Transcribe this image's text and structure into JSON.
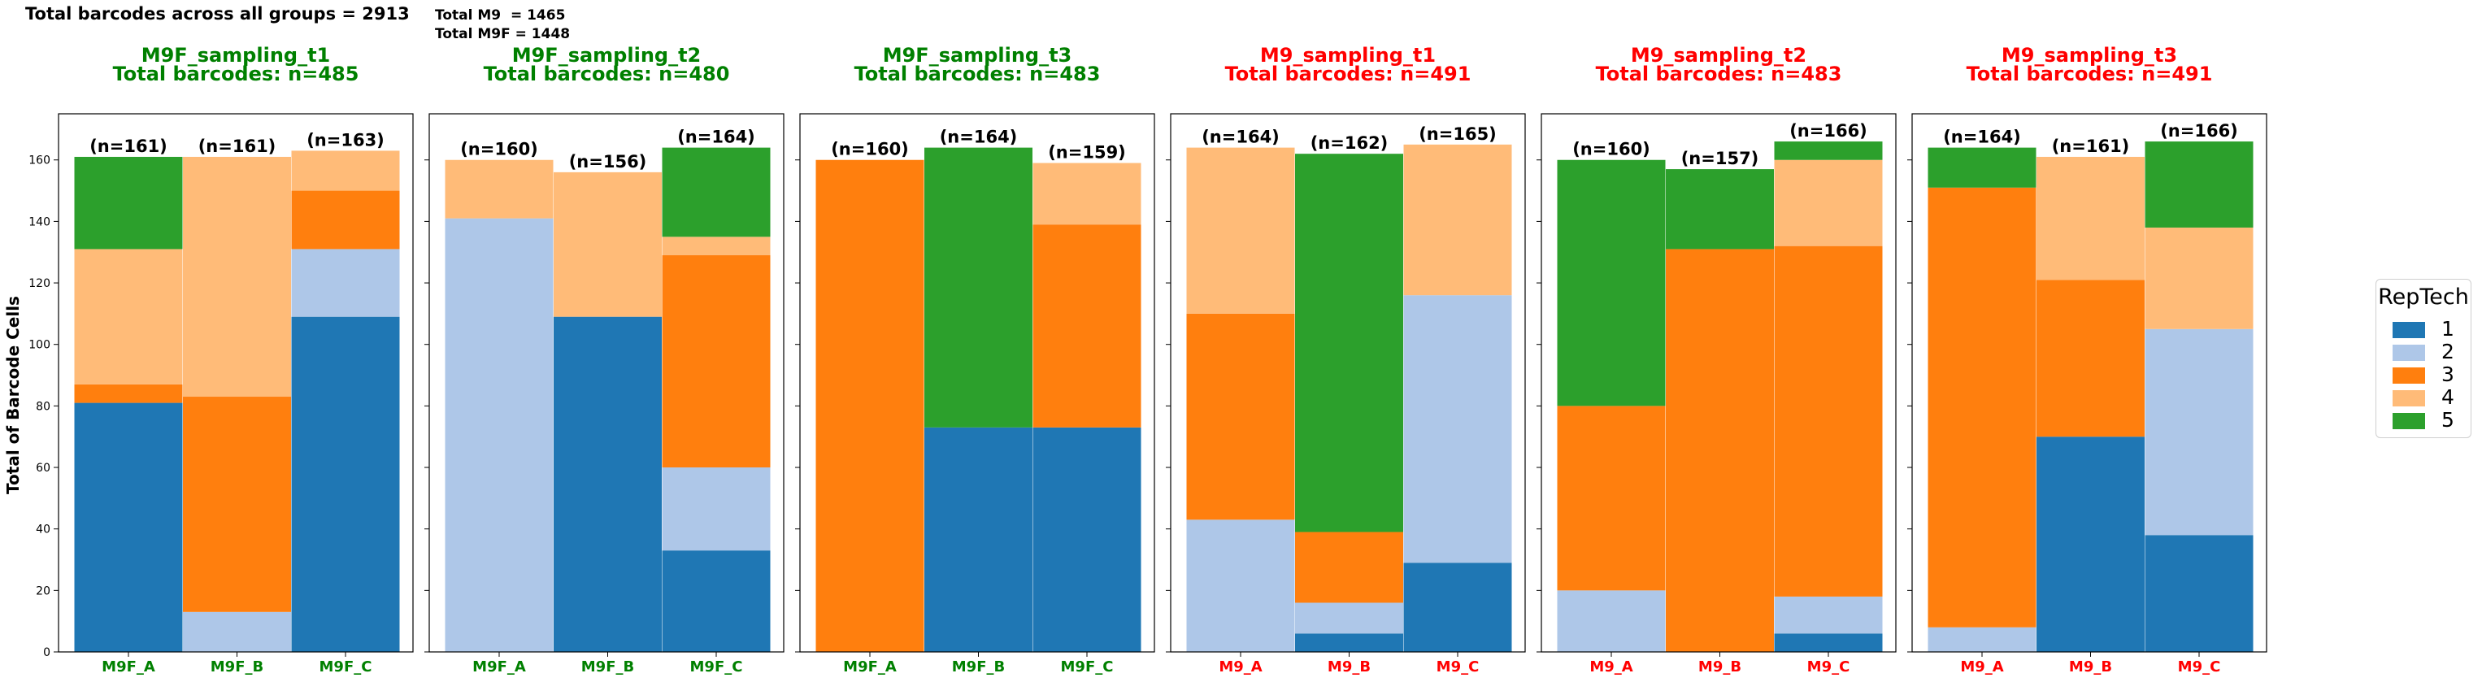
{
  "header": {
    "total_all": "Total barcodes across all groups = 2913",
    "total_m9": "Total M9  = 1465",
    "total_m9f": "Total M9F = 1448"
  },
  "colors": {
    "group_m9f": "#008000",
    "group_m9": "#ff0000",
    "rep1": "#1f77b4",
    "rep2": "#aec7e8",
    "rep3": "#ff7f0e",
    "rep4": "#ffbb78",
    "rep5": "#2ca02c"
  },
  "legend": {
    "title": "RepTech",
    "items": [
      {
        "label": "1",
        "color": "#1f77b4"
      },
      {
        "label": "2",
        "color": "#aec7e8"
      },
      {
        "label": "3",
        "color": "#ff7f0e"
      },
      {
        "label": "4",
        "color": "#ffbb78"
      },
      {
        "label": "5",
        "color": "#2ca02c"
      }
    ]
  },
  "chart_data": {
    "type": "bar",
    "stacked": true,
    "ylabel": "Total of Barcode Cells",
    "ylim": [
      0,
      175
    ],
    "yticks": [
      0,
      20,
      40,
      60,
      80,
      100,
      120,
      140,
      160
    ],
    "series_names": [
      "1",
      "2",
      "3",
      "4",
      "5"
    ],
    "panels": [
      {
        "title": "M9F_sampling_t1",
        "subtitle": "Total barcodes: n=485",
        "group": "M9F",
        "categories": [
          "M9F_A",
          "M9F_B",
          "M9F_C"
        ],
        "totals_labels": [
          "(n=161)",
          "(n=161)",
          "(n=163)"
        ],
        "series": [
          {
            "name": "1",
            "values": [
              81,
              0,
              109
            ]
          },
          {
            "name": "2",
            "values": [
              0,
              13,
              22
            ]
          },
          {
            "name": "3",
            "values": [
              6,
              70,
              19
            ]
          },
          {
            "name": "4",
            "values": [
              44,
              78,
              13
            ]
          },
          {
            "name": "5",
            "values": [
              30,
              0,
              0
            ]
          }
        ]
      },
      {
        "title": "M9F_sampling_t2",
        "subtitle": "Total barcodes: n=480",
        "group": "M9F",
        "categories": [
          "M9F_A",
          "M9F_B",
          "M9F_C"
        ],
        "totals_labels": [
          "(n=160)",
          "(n=156)",
          "(n=164)"
        ],
        "series": [
          {
            "name": "1",
            "values": [
              0,
              109,
              33
            ]
          },
          {
            "name": "2",
            "values": [
              141,
              0,
              27
            ]
          },
          {
            "name": "3",
            "values": [
              0,
              0,
              69
            ]
          },
          {
            "name": "4",
            "values": [
              19,
              47,
              6
            ]
          },
          {
            "name": "5",
            "values": [
              0,
              0,
              29
            ]
          }
        ]
      },
      {
        "title": "M9F_sampling_t3",
        "subtitle": "Total barcodes: n=483",
        "group": "M9F",
        "categories": [
          "M9F_A",
          "M9F_B",
          "M9F_C"
        ],
        "totals_labels": [
          "(n=160)",
          "(n=164)",
          "(n=159)"
        ],
        "series": [
          {
            "name": "1",
            "values": [
              0,
              73,
              73
            ]
          },
          {
            "name": "2",
            "values": [
              0,
              0,
              0
            ]
          },
          {
            "name": "3",
            "values": [
              160,
              0,
              66
            ]
          },
          {
            "name": "4",
            "values": [
              0,
              0,
              20
            ]
          },
          {
            "name": "5",
            "values": [
              0,
              91,
              0
            ]
          }
        ]
      },
      {
        "title": "M9_sampling_t1",
        "subtitle": "Total barcodes: n=491",
        "group": "M9",
        "categories": [
          "M9_A",
          "M9_B",
          "M9_C"
        ],
        "totals_labels": [
          "(n=164)",
          "(n=162)",
          "(n=165)"
        ],
        "series": [
          {
            "name": "1",
            "values": [
              0,
              6,
              29
            ]
          },
          {
            "name": "2",
            "values": [
              43,
              10,
              87
            ]
          },
          {
            "name": "3",
            "values": [
              67,
              23,
              0
            ]
          },
          {
            "name": "4",
            "values": [
              54,
              0,
              49
            ]
          },
          {
            "name": "5",
            "values": [
              0,
              123,
              0
            ]
          }
        ]
      },
      {
        "title": "M9_sampling_t2",
        "subtitle": "Total barcodes: n=483",
        "group": "M9",
        "categories": [
          "M9_A",
          "M9_B",
          "M9_C"
        ],
        "totals_labels": [
          "(n=160)",
          "(n=157)",
          "(n=166)"
        ],
        "series": [
          {
            "name": "1",
            "values": [
              0,
              0,
              6
            ]
          },
          {
            "name": "2",
            "values": [
              20,
              0,
              12
            ]
          },
          {
            "name": "3",
            "values": [
              60,
              131,
              114
            ]
          },
          {
            "name": "4",
            "values": [
              0,
              0,
              28
            ]
          },
          {
            "name": "5",
            "values": [
              80,
              26,
              6
            ]
          }
        ]
      },
      {
        "title": "M9_sampling_t3",
        "subtitle": "Total barcodes: n=491",
        "group": "M9",
        "categories": [
          "M9_A",
          "M9_B",
          "M9_C"
        ],
        "totals_labels": [
          "(n=164)",
          "(n=161)",
          "(n=166)"
        ],
        "series": [
          {
            "name": "1",
            "values": [
              0,
              70,
              38
            ]
          },
          {
            "name": "2",
            "values": [
              8,
              0,
              67
            ]
          },
          {
            "name": "3",
            "values": [
              143,
              51,
              0
            ]
          },
          {
            "name": "4",
            "values": [
              0,
              40,
              33
            ]
          },
          {
            "name": "5",
            "values": [
              13,
              0,
              28
            ]
          }
        ]
      }
    ]
  }
}
